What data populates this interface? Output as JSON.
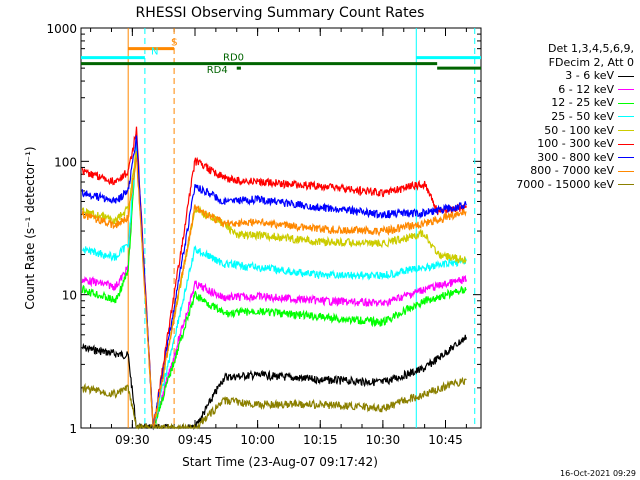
{
  "chart_data": {
    "type": "line",
    "title": "RHESSI Observing Summary Count Rates",
    "xlabel": "Start Time (23-Aug-07 09:17:42)",
    "ylabel": "Count Rate (s⁻¹ detector⁻¹)",
    "ylog": true,
    "xlim": [
      "09:17:42",
      "10:53:30"
    ],
    "ylim": [
      1,
      1000
    ],
    "xticks": [
      "09:30",
      "09:45",
      "10:00",
      "10:15",
      "10:30",
      "10:45"
    ],
    "yticks": [
      "1",
      "10",
      "100",
      "1000"
    ],
    "grid": false,
    "legend_position": "right",
    "legend_header": [
      "Det 1,3,4,5,6,9,",
      "FDecim 2, Att 0"
    ],
    "series": [
      {
        "name": "3 - 6 keV",
        "color": "#000000",
        "x": [
          "09:18",
          "09:26",
          "09:29",
          "09:31",
          "09:35",
          "09:45",
          "09:52",
          "10:00",
          "10:15",
          "10:30",
          "10:40",
          "10:50"
        ],
        "y": [
          4.0,
          3.6,
          3.5,
          1.0,
          1.0,
          1.0,
          2.4,
          2.5,
          2.3,
          2.2,
          2.8,
          4.8
        ]
      },
      {
        "name": "6 - 12 keV",
        "color": "#ff00ff",
        "x": [
          "09:18",
          "09:26",
          "09:29",
          "09:31",
          "09:35",
          "09:45",
          "09:52",
          "10:00",
          "10:15",
          "10:30",
          "10:40",
          "10:50"
        ],
        "y": [
          13,
          11.5,
          16,
          150,
          1.0,
          12,
          9.5,
          9.7,
          9.0,
          8.6,
          11,
          13
        ]
      },
      {
        "name": "12 - 25 keV",
        "color": "#00ff00",
        "x": [
          "09:18",
          "09:26",
          "09:29",
          "09:31",
          "09:35",
          "09:45",
          "09:52",
          "10:00",
          "10:15",
          "10:30",
          "10:40",
          "10:50"
        ],
        "y": [
          11,
          9.0,
          15,
          140,
          1.0,
          10,
          7.2,
          7.5,
          6.8,
          6.2,
          9.0,
          11
        ]
      },
      {
        "name": "25 - 50 keV",
        "color": "#00ffff",
        "x": [
          "09:18",
          "09:26",
          "09:29",
          "09:31",
          "09:35",
          "09:45",
          "09:52",
          "10:00",
          "10:15",
          "10:30",
          "10:40",
          "10:50"
        ],
        "y": [
          22,
          19,
          24,
          130,
          1.0,
          22,
          17,
          16,
          14,
          14,
          16,
          18
        ]
      },
      {
        "name": "50 - 100 keV",
        "color": "#cccc00",
        "x": [
          "09:18",
          "09:26",
          "09:29",
          "09:31",
          "09:35",
          "09:45",
          "09:52",
          "09:55",
          "10:00",
          "10:15",
          "10:30",
          "10:40",
          "10:43",
          "10:50"
        ],
        "y": [
          42,
          36,
          44,
          120,
          1.0,
          44,
          34,
          28,
          28,
          25,
          24,
          29,
          20,
          18
        ]
      },
      {
        "name": "100 - 300 keV",
        "color": "#ff0000",
        "x": [
          "09:18",
          "09:26",
          "09:29",
          "09:31",
          "09:35",
          "09:45",
          "09:52",
          "09:55",
          "10:00",
          "10:15",
          "10:30",
          "10:40",
          "10:43",
          "10:50"
        ],
        "y": [
          85,
          70,
          84,
          170,
          1.0,
          100,
          75,
          72,
          70,
          65,
          58,
          68,
          42,
          45
        ]
      },
      {
        "name": "300 - 800 keV",
        "color": "#0000ff",
        "x": [
          "09:18",
          "09:26",
          "09:29",
          "09:31",
          "09:35",
          "09:45",
          "09:52",
          "10:00",
          "10:15",
          "10:30",
          "10:40",
          "10:50"
        ],
        "y": [
          58,
          50,
          60,
          150,
          1.0,
          65,
          50,
          52,
          45,
          40,
          41,
          47
        ]
      },
      {
        "name": "800 - 7000 keV",
        "color": "#ff8800",
        "x": [
          "09:18",
          "09:26",
          "09:29",
          "09:31",
          "09:35",
          "09:45",
          "09:52",
          "10:00",
          "10:15",
          "10:30",
          "10:40",
          "10:50"
        ],
        "y": [
          40,
          33,
          38,
          110,
          1.0,
          45,
          34,
          35,
          31,
          30,
          34,
          42
        ]
      },
      {
        "name": "7000 - 15000 keV",
        "color": "#8b8000",
        "x": [
          "09:18",
          "09:26",
          "09:29",
          "09:31",
          "09:35",
          "09:45",
          "09:52",
          "10:00",
          "10:15",
          "10:30",
          "10:40",
          "10:50"
        ],
        "y": [
          2.0,
          1.8,
          2.0,
          1.0,
          1.0,
          1.0,
          1.6,
          1.5,
          1.5,
          1.4,
          1.8,
          2.3
        ]
      }
    ],
    "annotations": [
      {
        "label": "S",
        "color": "#ff8800",
        "x_start": "09:29",
        "x_end": "09:40",
        "y": 700
      },
      {
        "label": "N",
        "color": "#00ffff",
        "x_start": "09:17:42",
        "x_end": "09:33",
        "y": 600
      },
      {
        "label": "RD0",
        "color": "#006400",
        "x_start": "09:17:42",
        "x_end": "10:43",
        "y": 540
      },
      {
        "label": "RD4",
        "color": "#006400",
        "x_start": "09:55",
        "x_end": "09:56",
        "y": 500
      },
      {
        "label": "",
        "color": "#00ffff",
        "x_start": "10:38",
        "x_end": "10:53:30",
        "y": 600
      },
      {
        "label": "",
        "color": "#006400",
        "x_start": "10:43",
        "x_end": "10:53:30",
        "y": 500
      }
    ],
    "vlines": [
      {
        "x": "09:29",
        "color": "#ff8800",
        "style": "solid"
      },
      {
        "x": "09:33",
        "color": "#00ffff",
        "style": "dashed"
      },
      {
        "x": "09:40",
        "color": "#ff8800",
        "style": "dashed"
      },
      {
        "x": "10:38",
        "color": "#00ffff",
        "style": "solid"
      },
      {
        "x": "10:52",
        "color": "#00ffff",
        "style": "dashed"
      }
    ]
  },
  "footer": {
    "date_label": "16-Oct-2021 09:29"
  }
}
